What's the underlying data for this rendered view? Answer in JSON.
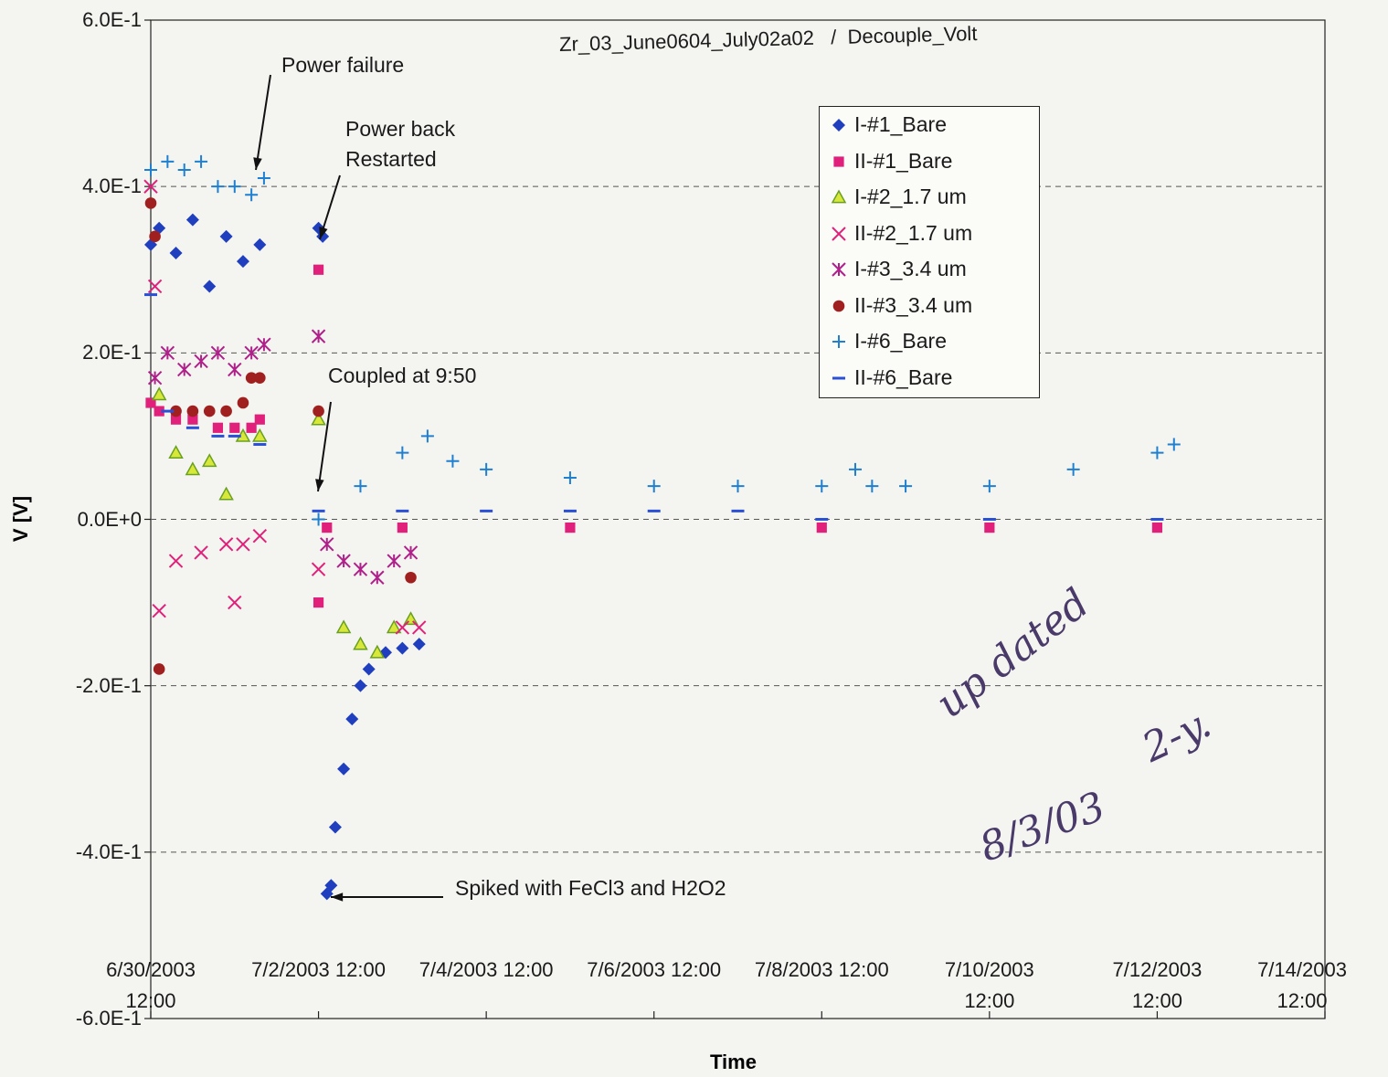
{
  "chart_data": {
    "type": "scatter",
    "title": "Zr_03_June0604_July02a02   /  Decouple_Volt",
    "xlabel": "Time",
    "ylabel": "V [V]",
    "ylim": [
      -0.6,
      0.6
    ],
    "y_ticks": [
      "6.0E-1",
      "4.0E-1",
      "2.0E-1",
      "0.0E+0",
      "-2.0E-1",
      "-4.0E-1",
      "-6.0E-1"
    ],
    "y_tick_values": [
      0.6,
      0.4,
      0.2,
      0.0,
      -0.2,
      -0.4,
      -0.6
    ],
    "x_ticks": [
      "6/30/2003\n12:00",
      "7/2/2003 12:00",
      "7/4/2003 12:00",
      "7/6/2003 12:00",
      "7/8/2003 12:00",
      "7/10/2003\n12:00",
      "7/12/2003\n12:00",
      "7/14/2003\n12:00"
    ],
    "x_tick_days": [
      0,
      2,
      4,
      6,
      8,
      10,
      12,
      14
    ],
    "grid": "horizontal dashed",
    "legend_position": "top-right",
    "series": [
      {
        "name": "I-#1_Bare",
        "marker": "diamond",
        "color": "#1f3fbf",
        "x": [
          0.0,
          0.1,
          0.3,
          0.5,
          0.7,
          0.9,
          1.1,
          1.3,
          2.0,
          2.05,
          2.1,
          2.15,
          2.2,
          2.3,
          2.4,
          2.5,
          2.6,
          2.8,
          3.0,
          3.2
        ],
        "y": [
          0.33,
          0.35,
          0.32,
          0.36,
          0.28,
          0.34,
          0.31,
          0.33,
          0.35,
          0.34,
          -0.45,
          -0.44,
          -0.37,
          -0.3,
          -0.24,
          -0.2,
          -0.18,
          -0.16,
          -0.155,
          -0.15
        ]
      },
      {
        "name": "II-#1_Bare",
        "marker": "square",
        "color": "#e0207a",
        "x": [
          0.0,
          0.1,
          0.3,
          0.5,
          0.8,
          1.0,
          1.2,
          1.3,
          2.0,
          2.0,
          2.1,
          3.0,
          5.0,
          8.0,
          10.0,
          12.0
        ],
        "y": [
          0.14,
          0.13,
          0.12,
          0.12,
          0.11,
          0.11,
          0.11,
          0.12,
          0.3,
          -0.1,
          -0.01,
          -0.01,
          -0.01,
          -0.01,
          -0.01,
          -0.01
        ]
      },
      {
        "name": "I-#2_1.7 um",
        "marker": "triangle",
        "color": "#9acd32",
        "x": [
          0.1,
          0.3,
          0.5,
          0.7,
          0.9,
          1.1,
          1.3,
          2.0,
          2.3,
          2.5,
          2.7,
          2.9,
          3.1
        ],
        "y": [
          0.15,
          0.08,
          0.06,
          0.07,
          0.03,
          0.1,
          0.1,
          0.12,
          -0.13,
          -0.15,
          -0.16,
          -0.13,
          -0.12
        ]
      },
      {
        "name": "II-#2_1.7 um",
        "marker": "x",
        "color": "#e0207a",
        "x": [
          0.0,
          0.05,
          0.1,
          0.3,
          0.6,
          0.9,
          1.1,
          1.3,
          1.0,
          2.0,
          3.0,
          3.2
        ],
        "y": [
          0.4,
          0.28,
          -0.11,
          -0.05,
          -0.04,
          -0.03,
          -0.03,
          -0.02,
          -0.1,
          -0.06,
          -0.13,
          -0.13
        ]
      },
      {
        "name": "I-#3_3.4 um",
        "marker": "asterisk",
        "color": "#b0208a",
        "x": [
          0.05,
          0.2,
          0.4,
          0.6,
          0.8,
          1.0,
          1.2,
          1.35,
          2.0,
          2.1,
          2.3,
          2.5,
          2.7,
          2.9,
          3.1
        ],
        "y": [
          0.17,
          0.2,
          0.18,
          0.19,
          0.2,
          0.18,
          0.2,
          0.21,
          0.22,
          -0.03,
          -0.05,
          -0.06,
          -0.07,
          -0.05,
          -0.04
        ]
      },
      {
        "name": "II-#3_3.4 um",
        "marker": "circle",
        "color": "#a02020",
        "x": [
          0.0,
          0.05,
          0.1,
          0.3,
          0.5,
          0.7,
          0.9,
          1.1,
          1.2,
          1.3,
          2.0,
          3.1
        ],
        "y": [
          0.38,
          0.34,
          -0.18,
          0.13,
          0.13,
          0.13,
          0.13,
          0.14,
          0.17,
          0.17,
          0.13,
          -0.07
        ]
      },
      {
        "name": "I-#6_Bare",
        "marker": "plus",
        "color": "#1f7fd0",
        "x": [
          0.0,
          0.2,
          0.4,
          0.6,
          0.8,
          1.0,
          1.2,
          1.35,
          2.0,
          2.5,
          3.0,
          3.3,
          3.6,
          4.0,
          5.0,
          6.0,
          7.0,
          8.0,
          8.4,
          8.6,
          9.0,
          10.0,
          11.0,
          12.0,
          12.2
        ],
        "y": [
          0.42,
          0.43,
          0.42,
          0.43,
          0.4,
          0.4,
          0.39,
          0.41,
          0.0,
          0.04,
          0.08,
          0.1,
          0.07,
          0.06,
          0.05,
          0.04,
          0.04,
          0.04,
          0.06,
          0.04,
          0.04,
          0.04,
          0.06,
          0.08,
          0.09
        ]
      },
      {
        "name": "II-#6_Bare",
        "marker": "dash",
        "color": "#2a50d8",
        "x": [
          0.0,
          0.2,
          0.5,
          0.8,
          1.0,
          1.3,
          2.0,
          3.0,
          4.0,
          5.0,
          6.0,
          7.0,
          8.0,
          10.0,
          12.0
        ],
        "y": [
          0.27,
          0.13,
          0.11,
          0.1,
          0.1,
          0.09,
          0.01,
          0.01,
          0.01,
          0.01,
          0.01,
          0.01,
          0.0,
          0.0,
          0.0
        ]
      }
    ],
    "annotations": [
      {
        "text": "Power failure"
      },
      {
        "text": "Power back\nRestarted"
      },
      {
        "text": "Coupled at 9:50"
      },
      {
        "text": "Spiked with FeCl3 and H2O2"
      }
    ]
  },
  "handwriting": [
    "up dated",
    "2-y.",
    "8/3/03"
  ]
}
